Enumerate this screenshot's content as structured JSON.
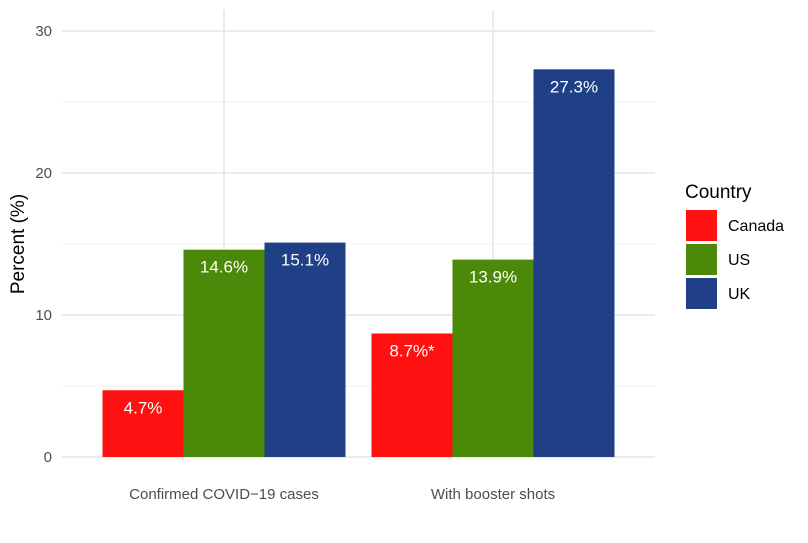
{
  "chart_data": {
    "type": "bar",
    "categories": [
      "Confirmed COVID−19 cases",
      "With booster shots"
    ],
    "series": [
      {
        "name": "Canada",
        "values": [
          4.7,
          8.7
        ],
        "labels": [
          "4.7%",
          "8.7%*"
        ],
        "color": "#FF1111"
      },
      {
        "name": "US",
        "values": [
          14.6,
          13.9
        ],
        "labels": [
          "14.6%",
          "13.9%"
        ],
        "color": "#4B8A08"
      },
      {
        "name": "UK",
        "values": [
          15.1,
          27.3
        ],
        "labels": [
          "15.1%",
          "27.3%"
        ],
        "color": "#1F3F87"
      }
    ],
    "ylabel": "Percent (%)",
    "xlabel": "",
    "ylim": [
      0,
      31
    ],
    "yticks": [
      0,
      10,
      20,
      30
    ],
    "grid": true,
    "legend": {
      "title": "Country",
      "placement": "right"
    }
  }
}
